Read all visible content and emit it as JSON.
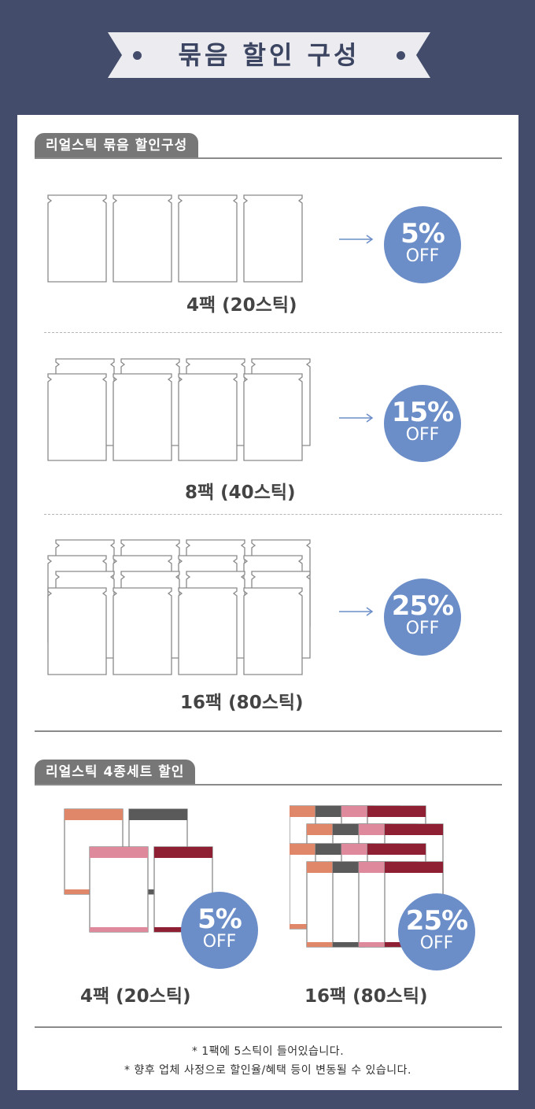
{
  "header": {
    "title": "묶음 할인 구성"
  },
  "section1": {
    "tab_label": "리얼스틱 묶음 할인구성",
    "rows": [
      {
        "label": "4팩 (20스틱)",
        "discount": "5%",
        "off": "OFF"
      },
      {
        "label": "8팩 (40스틱)",
        "discount": "15%",
        "off": "OFF"
      },
      {
        "label": "16팩 (80스틱)",
        "discount": "25%",
        "off": "OFF"
      }
    ]
  },
  "section2": {
    "tab_label": "리얼스틱 4종세트 할인",
    "sets": [
      {
        "label": "4팩 (20스틱)",
        "discount": "5%",
        "off": "OFF"
      },
      {
        "label": "16팩 (80스틱)",
        "discount": "25%",
        "off": "OFF"
      }
    ]
  },
  "notes": [
    "* 1팩에 5스틱이 들어있습니다.",
    "* 향후 업체 사정으로 할인율/혜택 등이 변동될 수 있습니다."
  ],
  "colors": {
    "background": "#434d6b",
    "badge": "#6b8dc8",
    "arrow": "#6b8dc8",
    "pack_orange": "#e0876a",
    "pack_gray": "#5a5a5a",
    "pack_pink": "#df8a9c",
    "pack_wine": "#8f1f33"
  }
}
